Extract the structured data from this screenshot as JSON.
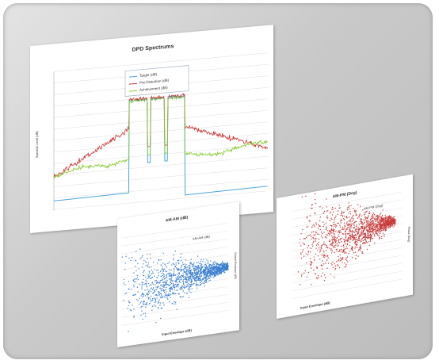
{
  "spectrum": {
    "title": "DPD Spectrums",
    "y_label": "Spectral Level (dB)",
    "legend": [
      "Target (dB)",
      "Pre-Distortion (dB)",
      "Achievement (dB)"
    ]
  },
  "am_am": {
    "title": "AM-AM (dB)",
    "legend": "AM-AM (dB)",
    "y_label": "Output Envelope (dB)",
    "x_label": "Input Envelope (dB)"
  },
  "am_pm": {
    "title": "AM-PM (Deg)",
    "legend": "AM-PM (Deg)",
    "y_label": "Phase (Deg)",
    "x_label": "Input Envelope (dB)"
  }
}
